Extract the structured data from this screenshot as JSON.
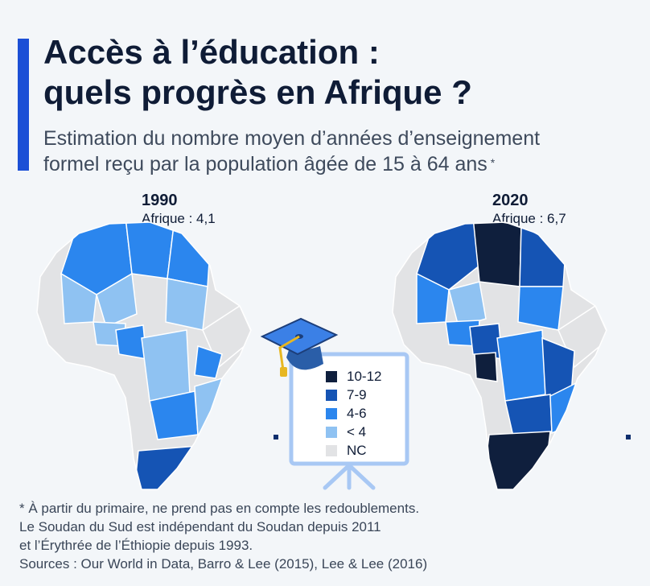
{
  "header": {
    "title_line1": "Accès à l’éducation :",
    "title_line2": "quels progrès en Afrique ?",
    "subtitle_line1": "Estimation du nombre moyen d’années d’enseignement",
    "subtitle_line2": "formel reçu par la population âgée de 15 à 64 ans",
    "subtitle_marker": "*"
  },
  "maps": [
    {
      "year": "1990",
      "average": "Afrique : 4,1"
    },
    {
      "year": "2020",
      "average": "Afrique : 6,7"
    }
  ],
  "legend": [
    {
      "label": "10-12",
      "color": "#0f1f3d"
    },
    {
      "label": "7-9",
      "color": "#1554b4"
    },
    {
      "label": "4-6",
      "color": "#2b86ee"
    },
    {
      "label": "< 4",
      "color": "#8fc2f2"
    },
    {
      "label": "NC",
      "color": "#e2e3e5"
    }
  ],
  "icons": [
    "graduation-cap-icon",
    "presentation-board-icon"
  ],
  "notes": {
    "footnote": "* À partir du primaire, ne prend pas en compte les redoublements.",
    "line2": "Le Soudan du Sud est indépendant du Soudan depuis 2011",
    "line3": "et l’Érythrée de l’Éthiopie depuis 1993.",
    "sources": "Sources : Our World in Data,  Barro & Lee (2015), Lee & Lee (2016)"
  }
}
